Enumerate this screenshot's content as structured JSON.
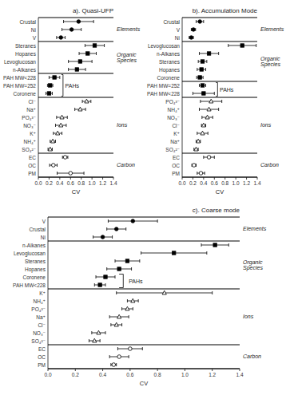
{
  "chart_data": [
    {
      "type": "dot",
      "orientation": "horizontal",
      "title": "a). Quasi-UFP",
      "x_label": "CV",
      "categories": [
        "Crustal",
        "Ni",
        "V",
        "Steranes",
        "Hopanes",
        "Levoglucosan",
        "n-Alkanes",
        "PAH MW<228",
        "PAH MW=252",
        "Coronene",
        "Cl⁻",
        "Na⁺",
        "PO₄³⁻",
        "NO₃⁻",
        "K⁺",
        "NH₄⁺",
        "SO₄²⁻",
        "EC",
        "OC",
        "PM"
      ],
      "xlim": [
        0.0,
        1.4
      ],
      "xticks": [
        {
          "value": 0.0,
          "label": "0.0"
        },
        0.2,
        0.4,
        0.6,
        0.8,
        {
          "value": 1.0,
          "label": "1.0"
        },
        1.2,
        1.4
      ],
      "series": [
        {
          "name": "Elements",
          "marker": "circle",
          "color": "black",
          "values": [
            0.75,
            0.62,
            0.42,
            null,
            null,
            null,
            null,
            null,
            null,
            null,
            null,
            null,
            null,
            null,
            null,
            null,
            null,
            null,
            null,
            null
          ],
          "errors": [
            0.28,
            0.18,
            0.08,
            null,
            null,
            null,
            null,
            null,
            null,
            null,
            null,
            null,
            null,
            null,
            null,
            null,
            null,
            null,
            null,
            null
          ]
        },
        {
          "name": "Organic\nSpecies",
          "marker": "square",
          "color": "black",
          "values": [
            null,
            null,
            null,
            1.05,
            0.92,
            0.78,
            0.72,
            null,
            null,
            null,
            null,
            null,
            null,
            null,
            null,
            null,
            null,
            null,
            null,
            null
          ],
          "errors": [
            null,
            null,
            null,
            0.18,
            0.16,
            0.22,
            0.16,
            null,
            null,
            null,
            null,
            null,
            null,
            null,
            null,
            null,
            null,
            null,
            null,
            null
          ]
        },
        {
          "name": "PAHs",
          "marker": "square",
          "color": "black",
          "values": [
            null,
            null,
            null,
            null,
            null,
            null,
            null,
            0.3,
            0.22,
            0.2,
            null,
            null,
            null,
            null,
            null,
            null,
            null,
            null,
            null,
            null
          ],
          "errors": [
            null,
            null,
            null,
            null,
            null,
            null,
            null,
            0.1,
            0.05,
            0.06,
            null,
            null,
            null,
            null,
            null,
            null,
            null,
            null,
            null,
            null
          ]
        },
        {
          "name": "Ions",
          "marker": "triangle-open",
          "color": "black",
          "values": [
            null,
            null,
            null,
            null,
            null,
            null,
            null,
            null,
            null,
            null,
            0.9,
            0.78,
            0.44,
            0.42,
            0.36,
            0.27,
            0.22,
            null,
            null,
            null
          ],
          "errors": [
            null,
            null,
            null,
            null,
            null,
            null,
            null,
            null,
            null,
            null,
            0.08,
            0.1,
            0.1,
            0.1,
            0.08,
            0.05,
            0.04,
            null,
            null,
            null
          ]
        },
        {
          "name": "Carbon",
          "marker": "circle-open",
          "color": "black",
          "values": [
            null,
            null,
            null,
            null,
            null,
            null,
            null,
            null,
            null,
            null,
            null,
            null,
            null,
            null,
            null,
            null,
            null,
            0.5,
            0.28,
            0.6
          ],
          "errors": [
            null,
            null,
            null,
            null,
            null,
            null,
            null,
            null,
            null,
            null,
            null,
            null,
            null,
            null,
            null,
            null,
            null,
            0.05,
            0.07,
            0.25
          ]
        }
      ],
      "annotations": [
        {
          "text": "PAHs",
          "categories": [
            "PAH MW<228",
            "PAH MW=252",
            "Coronene"
          ]
        }
      ]
    },
    {
      "type": "dot",
      "orientation": "horizontal",
      "title": "b). Accumulation Mode",
      "x_label": "CV",
      "categories": [
        "Crustal",
        "V",
        "Ni",
        "Levoglucosan",
        "n-Alkanes",
        "Steranes",
        "Hopanes",
        "Coronene",
        "PAH MW=252",
        "PAH MW<228",
        "PO₄³⁻",
        "NH₄⁺",
        "NO₃⁻",
        "Cl⁻",
        "K⁺",
        "Na⁺",
        "SO₄²⁻",
        "EC",
        "OC",
        "PM"
      ],
      "xlim": [
        0.0,
        1.4
      ],
      "xticks": [
        {
          "value": 0.0,
          "label": "0.0"
        },
        0.2,
        0.4,
        0.6,
        0.8,
        {
          "value": 1.0,
          "label": "1.0"
        },
        1.2,
        1.4
      ],
      "series": [
        {
          "name": "Elements",
          "marker": "circle",
          "color": "black",
          "values": [
            0.33,
            0.21,
            0.17,
            null,
            null,
            null,
            null,
            null,
            null,
            null,
            null,
            null,
            null,
            null,
            null,
            null,
            null,
            null,
            null,
            null
          ],
          "errors": [
            0.07,
            0.04,
            0.04,
            null,
            null,
            null,
            null,
            null,
            null,
            null,
            null,
            null,
            null,
            null,
            null,
            null,
            null,
            null,
            null,
            null
          ]
        },
        {
          "name": "Organic\nSpecies",
          "marker": "square",
          "color": "black",
          "values": [
            null,
            null,
            null,
            1.12,
            0.5,
            0.38,
            0.36,
            0.33,
            null,
            null,
            null,
            null,
            null,
            null,
            null,
            null,
            null,
            null,
            null,
            null
          ],
          "errors": [
            null,
            null,
            null,
            0.26,
            0.18,
            0.08,
            0.08,
            0.06,
            null,
            null,
            null,
            null,
            null,
            null,
            null,
            null,
            null,
            null,
            null,
            null
          ]
        },
        {
          "name": "PAHs",
          "marker": "square",
          "color": "black",
          "values": [
            null,
            null,
            null,
            null,
            null,
            null,
            null,
            null,
            0.38,
            0.4,
            null,
            null,
            null,
            null,
            null,
            null,
            null,
            null,
            null,
            null
          ],
          "errors": [
            null,
            null,
            null,
            null,
            null,
            null,
            null,
            null,
            0.06,
            0.2,
            null,
            null,
            null,
            null,
            null,
            null,
            null,
            null,
            null,
            null
          ]
        },
        {
          "name": "Ions",
          "marker": "triangle-open",
          "color": "black",
          "values": [
            null,
            null,
            null,
            null,
            null,
            null,
            null,
            null,
            null,
            null,
            0.54,
            0.5,
            0.47,
            0.4,
            0.38,
            0.3,
            0.26,
            null,
            null,
            null
          ],
          "errors": [
            null,
            null,
            null,
            null,
            null,
            null,
            null,
            null,
            null,
            null,
            0.2,
            0.18,
            0.1,
            0.04,
            0.1,
            0.04,
            0.04,
            null,
            null,
            null
          ]
        },
        {
          "name": "Carbon",
          "marker": "circle-open",
          "color": "black",
          "values": [
            null,
            null,
            null,
            null,
            null,
            null,
            null,
            null,
            null,
            null,
            null,
            null,
            null,
            null,
            null,
            null,
            null,
            0.5,
            0.22,
            0.35
          ],
          "errors": [
            null,
            null,
            null,
            null,
            null,
            null,
            null,
            null,
            null,
            null,
            null,
            null,
            null,
            null,
            null,
            null,
            null,
            0.1,
            0.04,
            0.07
          ]
        }
      ],
      "annotations": [
        {
          "text": "PAHs",
          "categories": [
            "PAH MW=252",
            "PAH MW<228"
          ]
        }
      ]
    },
    {
      "type": "dot",
      "orientation": "horizontal",
      "title": "c). Coarse mode",
      "x_label": "CV",
      "categories": [
        "V",
        "Crustal",
        "Ni",
        "n-Alkanes",
        "Levoglucosan",
        "Steranes",
        "Hopanes",
        "Coronene",
        "PAH MW<228",
        "K⁺",
        "NH₄⁺",
        "PO₄³⁻",
        "Na⁺",
        "Cl⁻",
        "NO₃⁻",
        "SO₄²⁻",
        "EC",
        "OC",
        "PM"
      ],
      "xlim": [
        0.0,
        1.4
      ],
      "xticks": [
        {
          "value": 0.0,
          "label": "0.0"
        },
        0.2,
        0.4,
        0.6,
        0.8,
        {
          "value": 1.0,
          "label": "1.0"
        },
        1.2,
        1.4
      ],
      "series": [
        {
          "name": "Elements",
          "marker": "circle",
          "color": "black",
          "values": [
            0.62,
            0.5,
            0.4,
            null,
            null,
            null,
            null,
            null,
            null,
            null,
            null,
            null,
            null,
            null,
            null,
            null,
            null,
            null,
            null
          ],
          "errors": [
            0.18,
            0.07,
            0.07,
            null,
            null,
            null,
            null,
            null,
            null,
            null,
            null,
            null,
            null,
            null,
            null,
            null,
            null,
            null,
            null
          ]
        },
        {
          "name": "Organic\nSpecies",
          "marker": "square",
          "color": "black",
          "values": [
            null,
            null,
            null,
            1.22,
            0.92,
            0.58,
            0.52,
            0.42,
            0.38,
            null,
            null,
            null,
            null,
            null,
            null,
            null,
            null,
            null,
            null
          ],
          "errors": [
            null,
            null,
            null,
            0.1,
            0.24,
            0.09,
            0.09,
            0.07,
            0.04,
            null,
            null,
            null,
            null,
            null,
            null,
            null,
            null,
            null,
            null
          ]
        },
        {
          "name": "Ions",
          "marker": "triangle-open",
          "color": "black",
          "values": [
            null,
            null,
            null,
            null,
            null,
            null,
            null,
            null,
            null,
            0.85,
            0.62,
            0.58,
            0.52,
            0.5,
            0.37,
            0.34,
            null,
            null,
            null
          ],
          "errors": [
            null,
            null,
            null,
            null,
            null,
            null,
            null,
            null,
            null,
            0.35,
            0.04,
            0.04,
            0.07,
            0.04,
            0.05,
            0.04,
            null,
            null,
            null
          ]
        },
        {
          "name": "Carbon",
          "marker": "circle-open",
          "color": "black",
          "values": [
            null,
            null,
            null,
            null,
            null,
            null,
            null,
            null,
            null,
            null,
            null,
            null,
            null,
            null,
            null,
            null,
            0.6,
            0.52,
            0.48
          ],
          "errors": [
            null,
            null,
            null,
            null,
            null,
            null,
            null,
            null,
            null,
            null,
            null,
            null,
            null,
            null,
            null,
            null,
            0.09,
            0.07,
            0.02
          ]
        }
      ],
      "annotations": [
        {
          "text": "PAHs",
          "categories": [
            "Coronene",
            "PAH MW<228"
          ]
        }
      ]
    }
  ]
}
